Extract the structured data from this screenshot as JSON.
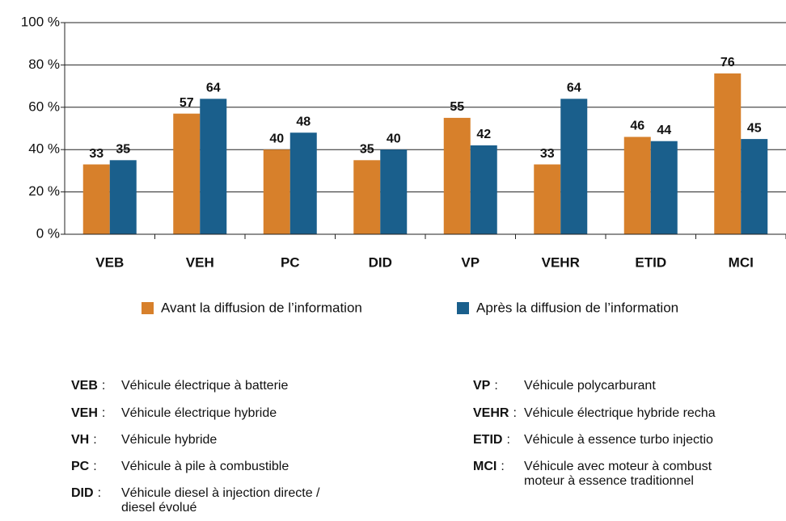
{
  "chart_data": {
    "type": "bar",
    "categories": [
      "VEB",
      "VEH",
      "PC",
      "DID",
      "VP",
      "VEHR",
      "ETID",
      "MCI"
    ],
    "series": [
      {
        "name": "Avant la diffusion de l’information",
        "color": "#d7802b",
        "values": [
          33,
          57,
          40,
          35,
          55,
          33,
          46,
          76
        ]
      },
      {
        "name": "Après la diffusion de l’information",
        "color": "#1a5f8c",
        "values": [
          35,
          64,
          48,
          40,
          42,
          64,
          44,
          45
        ]
      }
    ],
    "ylim": [
      0,
      100
    ],
    "yticks": [
      {
        "value": 0,
        "label": "0 %"
      },
      {
        "value": 20,
        "label": "20 %"
      },
      {
        "value": 40,
        "label": "40 %"
      },
      {
        "value": 60,
        "label": "60 %"
      },
      {
        "value": 80,
        "label": "80 %"
      },
      {
        "value": 100,
        "label": "100 %"
      }
    ],
    "grid": true,
    "legend": "bottom"
  },
  "glossary_separator": ":",
  "glossary": [
    {
      "abbr": "VEB",
      "text": [
        "Véhicule électrique à batterie"
      ]
    },
    {
      "abbr": "VEH",
      "text": [
        "Véhicule électrique hybride"
      ]
    },
    {
      "abbr": "VH",
      "text": [
        "Véhicule hybride"
      ]
    },
    {
      "abbr": "PC",
      "text": [
        "Véhicule à pile à combustible"
      ]
    },
    {
      "abbr": "DID",
      "text": [
        "Véhicule diesel à injection directe /",
        "diesel évolué"
      ]
    },
    {
      "abbr": "VP",
      "text": [
        "Véhicule polycarburant"
      ]
    },
    {
      "abbr": "VEHR",
      "text": [
        "Véhicule électrique hybride recha"
      ]
    },
    {
      "abbr": "ETID",
      "text": [
        "Véhicule à essence turbo injectio"
      ]
    },
    {
      "abbr": "MCI",
      "text": [
        "Véhicule avec moteur à combust",
        "moteur à essence traditionnel"
      ]
    }
  ]
}
